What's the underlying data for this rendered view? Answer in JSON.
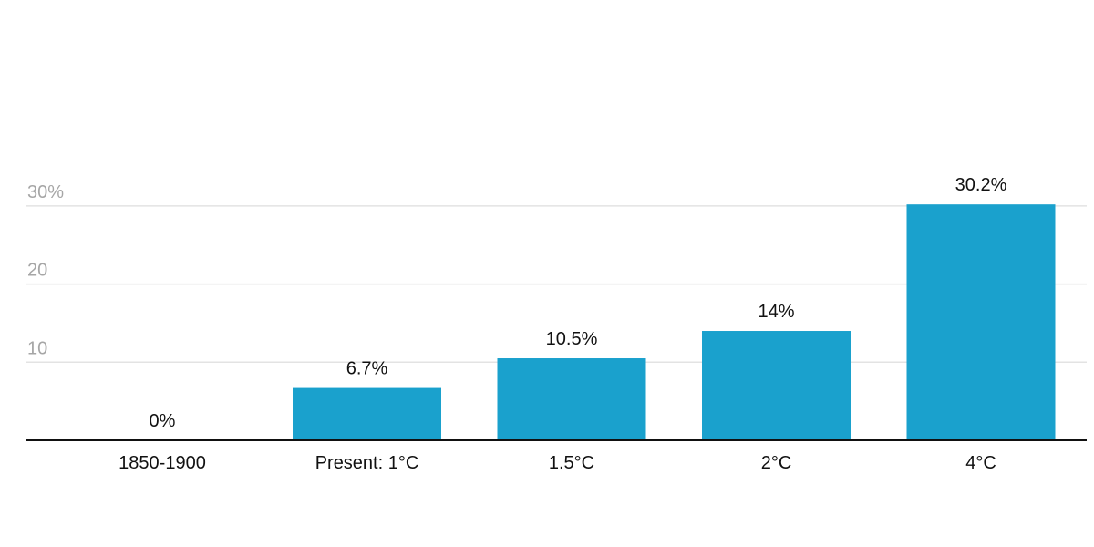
{
  "chart_data": {
    "type": "bar",
    "categories": [
      "1850-1900",
      "Present: 1°C",
      "1.5°C",
      "2°C",
      "4°C"
    ],
    "values": [
      0,
      6.7,
      10.5,
      14,
      30.2
    ],
    "data_labels": [
      "0%",
      "6.7%",
      "10.5%",
      "14%",
      "30.2%"
    ],
    "y_ticks": [
      {
        "value": 10,
        "label": "10"
      },
      {
        "value": 20,
        "label": "20"
      },
      {
        "value": 30,
        "label": "30%"
      }
    ],
    "ylim": [
      0,
      30
    ],
    "grid": true,
    "legend": "none",
    "colors": {
      "bar": "#1aa1cd",
      "grid": "#e3e3e3",
      "axis": "#111111"
    }
  }
}
